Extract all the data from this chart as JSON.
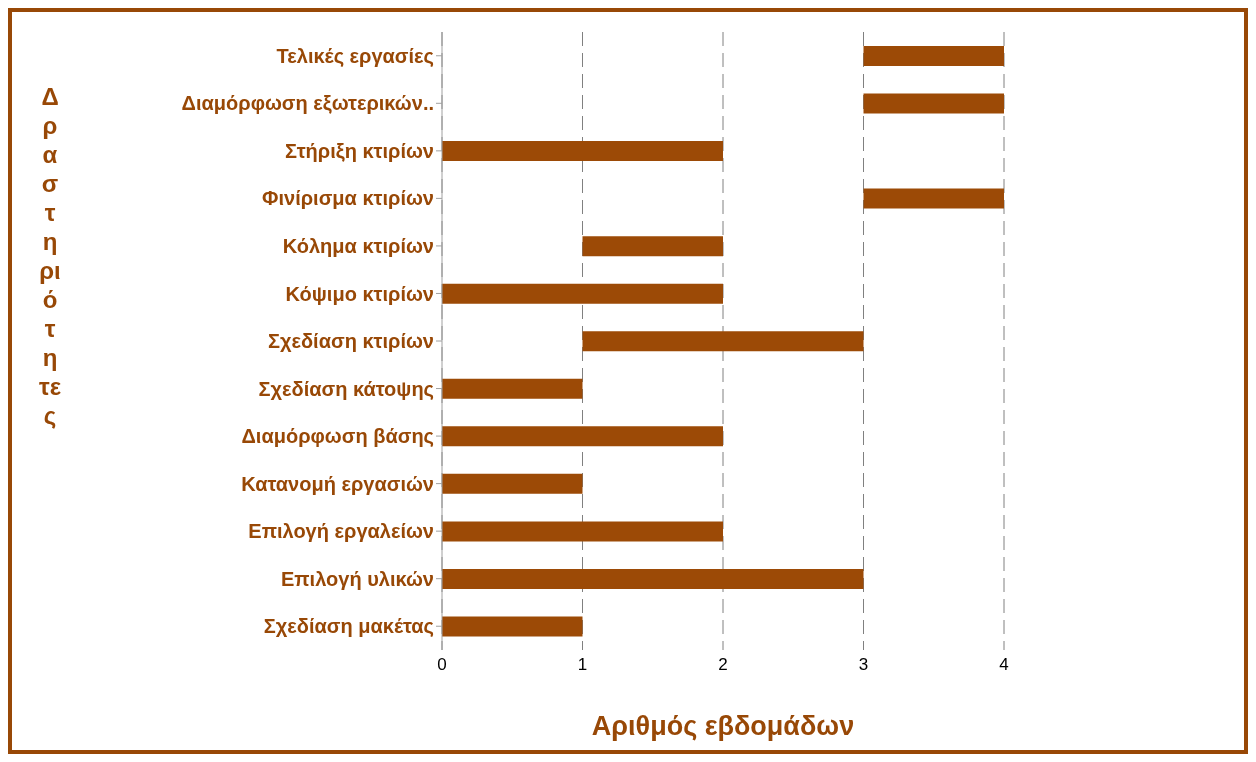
{
  "chart_data": {
    "type": "bar",
    "orientation": "horizontal",
    "xlabel": "Αριθμός εβδομάδων",
    "ylabel": "Δραστηριότητες",
    "categories": [
      "Τελικές εργασίες",
      "Διαμόρφωση εξωτερικών..",
      "Στήριξη κτιρίων",
      "Φινίρισμα κτιρίων",
      "Κόλημα κτιρίων",
      "Κόψιμο κτιρίων",
      "Σχεδίαση κτιρίων",
      "Σχεδίαση κάτοψης",
      "Διαμόρφωση βάσης",
      "Κατανομή εργασιών",
      "Επιλογή εργαλείων",
      "Επιλογή υλικών",
      "Σχεδίαση μακέτας"
    ],
    "base": [
      3,
      3,
      0,
      3,
      1,
      0,
      1,
      0,
      0,
      0,
      0,
      0,
      0
    ],
    "values": [
      1,
      1,
      2,
      1,
      1,
      2,
      2,
      1,
      2,
      1,
      2,
      3,
      1
    ],
    "color": "#9c4a06",
    "xlim": [
      0,
      4
    ],
    "xticks": [
      0,
      1,
      2,
      3,
      4
    ],
    "grid": "x",
    "line_style": "dashed",
    "legend": false
  }
}
